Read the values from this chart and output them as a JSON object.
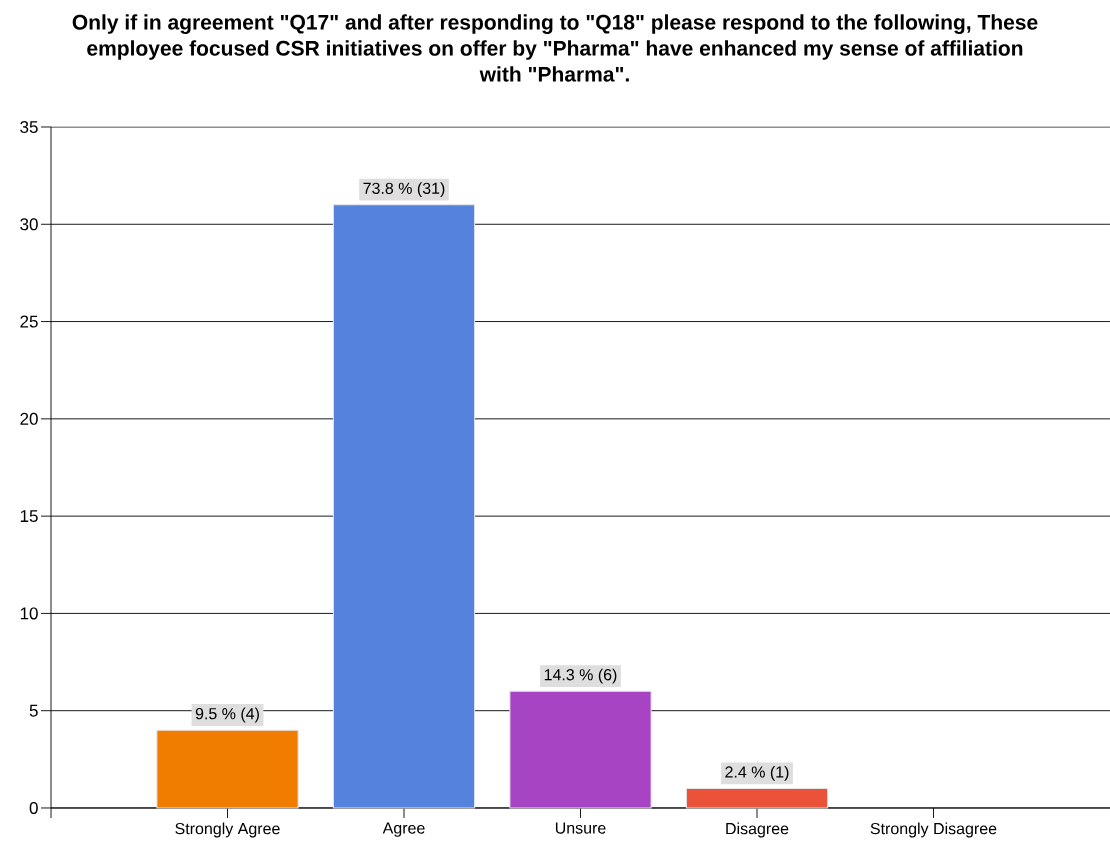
{
  "chart_data": {
    "type": "bar",
    "title": "Only if in agreement \"Q17\" and after responding to \"Q18\" please respond to the following, These employee focused CSR initiatives on offer by \"Pharma\" have enhanced my sense of affiliation with \"Pharma\".",
    "categories": [
      "Strongly Agree",
      "Agree",
      "Unsure",
      "Disagree",
      "Strongly Disagree"
    ],
    "values": [
      4,
      31,
      6,
      1,
      0
    ],
    "colors": [
      "#f07c00",
      "#5482dc",
      "#a644c4",
      "#ea533a",
      "#888888"
    ],
    "value_labels": [
      "9.5 % (4)",
      "73.8 % (31)",
      "14.3 % (6)",
      "2.4 % (1)",
      null
    ],
    "ylim": [
      0,
      35
    ],
    "yticks": [
      0,
      5,
      10,
      15,
      20,
      25,
      30,
      35
    ],
    "grid": "y"
  }
}
